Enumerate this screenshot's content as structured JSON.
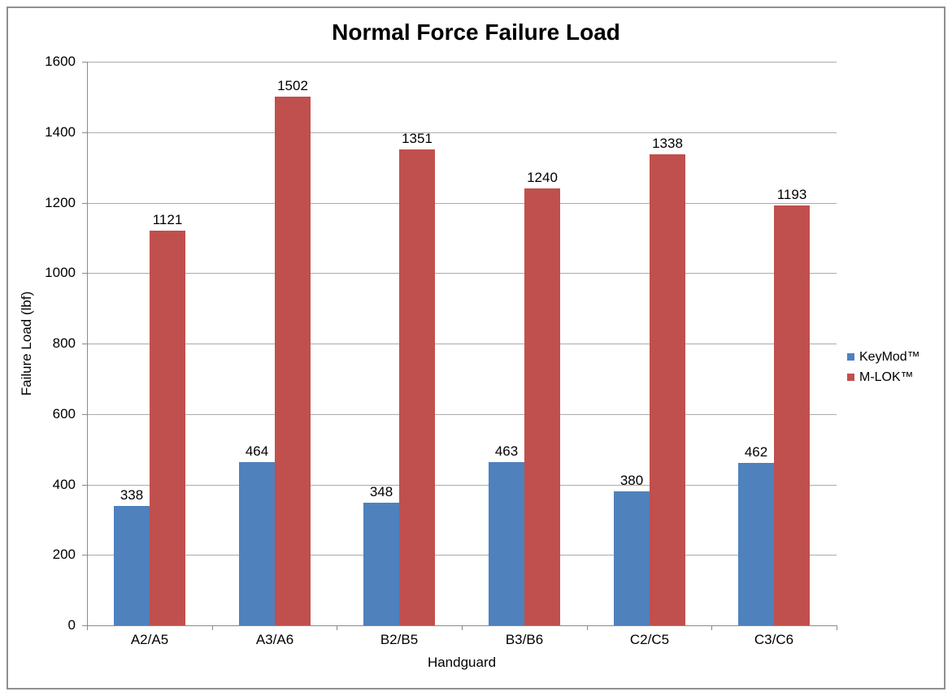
{
  "title": "Normal Force Failure Load",
  "chart_data": {
    "type": "bar",
    "title": "Normal Force Failure Load",
    "categories": [
      "A2/A5",
      "A3/A6",
      "B2/B5",
      "B3/B6",
      "C2/C5",
      "C3/C6"
    ],
    "series": [
      {
        "name": "KeyMod™",
        "color": "#4F81BD",
        "values": [
          338,
          464,
          348,
          463,
          380,
          462
        ]
      },
      {
        "name": "M-LOK™",
        "color": "#C0504D",
        "values": [
          1121,
          1502,
          1351,
          1240,
          1338,
          1193
        ]
      }
    ],
    "xlabel": "Handguard",
    "ylabel": "Failure Load (lbf)",
    "ylim": [
      0,
      1600
    ],
    "ytick_step": 200,
    "grid": true,
    "value_labels": true,
    "legend_position": "right"
  },
  "colors": {
    "background": "#FFFFFF",
    "frame_border": "#8F8F8F",
    "gridline": "#ABABAB",
    "axis": "#8A8A8A",
    "text": "#000000"
  }
}
